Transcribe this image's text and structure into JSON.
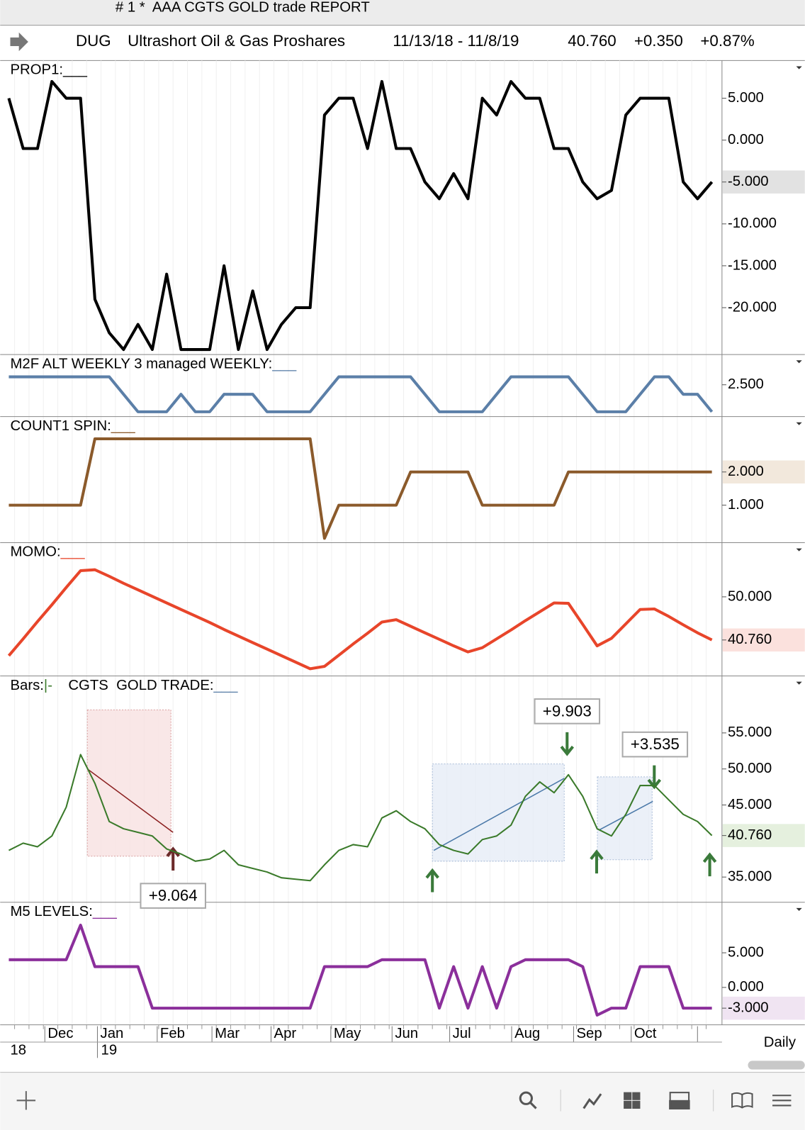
{
  "header": {
    "title": "# 1 *  AAA CGTS GOLD trade REPORT",
    "symbol": "DUG",
    "name": "Ultrashort Oil & Gas Proshares",
    "range": "11/13/18 - 11/8/19",
    "last": "40.760",
    "change": "+0.350",
    "change_pct": "+0.87%"
  },
  "chart_data": [
    {
      "type": "line",
      "title": "PROP1:",
      "marker": "___",
      "marker_color": "#000000",
      "ylim": [
        -25.6,
        9.5
      ],
      "yticks": [
        {
          "value": 5,
          "label": "5.000"
        },
        {
          "value": 0,
          "label": "0.000"
        },
        {
          "value": -10,
          "label": "-10.000"
        },
        {
          "value": -15,
          "label": "-15.000"
        },
        {
          "value": -20,
          "label": "-20.000"
        }
      ],
      "last_value": {
        "value": -5,
        "label": "-5.000",
        "color": "#e2e2e2"
      },
      "series": [
        {
          "color": "#000000",
          "values": [
            5,
            -1,
            -1,
            7,
            5,
            5,
            -19,
            -23,
            -25,
            -22,
            -25,
            -16,
            -25,
            -25,
            -25,
            -15,
            -25,
            -18,
            -25,
            -22,
            -20,
            -20,
            3,
            5,
            5,
            -1,
            7,
            -1,
            -1,
            -5,
            -7,
            -4,
            -7,
            5,
            3,
            7,
            5,
            5,
            -1,
            -1,
            -5,
            -7,
            -6,
            3,
            5,
            5,
            5,
            -5,
            -7,
            -5
          ]
        }
      ]
    },
    {
      "type": "line",
      "title": "M2F ALT WEEKLY 3 managed WEEKLY:",
      "marker": "___",
      "marker_color": "#5b7fa8",
      "ylim": [
        0.5,
        4.4
      ],
      "yticks": [
        {
          "value": 2.5,
          "label": "2.500"
        }
      ],
      "series": [
        {
          "color": "#5b7fa8",
          "values": [
            3,
            3,
            3,
            3,
            3,
            3,
            3,
            3,
            1.9,
            0.8,
            0.8,
            0.8,
            1.9,
            0.8,
            0.8,
            1.9,
            1.9,
            1.9,
            0.8,
            0.8,
            0.8,
            0.8,
            1.9,
            3,
            3,
            3,
            3,
            3,
            3,
            1.9,
            0.8,
            0.8,
            0.8,
            0.8,
            1.9,
            3,
            3,
            3,
            3,
            3,
            1.9,
            0.8,
            0.8,
            0.8,
            1.9,
            3,
            3,
            1.9,
            1.9,
            0.8
          ]
        }
      ]
    },
    {
      "type": "line",
      "title": "COUNT1 SPIN:",
      "marker": "___",
      "marker_color": "#8b5a2b",
      "ylim": [
        -0.13,
        3.67
      ],
      "yticks": [
        {
          "value": 1,
          "label": "1.000"
        }
      ],
      "last_value": {
        "value": 2,
        "label": "2.000",
        "color": "#f2e8dc"
      },
      "series": [
        {
          "color": "#8b5a2b",
          "values": [
            1,
            1,
            1,
            1,
            1,
            1,
            3,
            3,
            3,
            3,
            3,
            3,
            3,
            3,
            3,
            3,
            3,
            3,
            3,
            3,
            3,
            3,
            0,
            1,
            1,
            1,
            1,
            1,
            2,
            2,
            2,
            2,
            2,
            1,
            1,
            1,
            1,
            1,
            1,
            2,
            2,
            2,
            2,
            2,
            2,
            2,
            2,
            2,
            2,
            2
          ]
        }
      ]
    },
    {
      "type": "line",
      "title": "MOMO:",
      "marker": "___",
      "marker_color": "#e8452a",
      "ylim": [
        33.05,
        61.6
      ],
      "yticks": [
        {
          "value": 50,
          "label": "50.000"
        }
      ],
      "last_value": {
        "value": 40.76,
        "label": "40.760",
        "color": "#fbe1dd"
      },
      "series": [
        {
          "color": "#e8452a",
          "values": [
            37.4,
            41.0,
            44.7,
            48.3,
            52.0,
            55.6,
            55.8,
            54.4,
            52.9,
            51.5,
            50.1,
            48.7,
            47.3,
            45.9,
            44.5,
            43.0,
            41.6,
            40.2,
            38.8,
            37.4,
            36.0,
            34.6,
            35.1,
            37.5,
            39.9,
            42.2,
            44.6,
            45.1,
            43.7,
            42.3,
            40.9,
            39.5,
            38.2,
            39.1,
            41.0,
            42.9,
            44.9,
            46.8,
            48.7,
            48.6,
            44.1,
            39.5,
            41.1,
            44.2,
            47.3,
            47.4,
            45.8,
            44.0,
            42.3,
            40.76
          ]
        }
      ]
    },
    {
      "type": "price",
      "title": "Bars:",
      "bar_icon": "|-",
      "subtitle": "CGTS  GOLD TRADE:",
      "marker": "___",
      "marker_color": "#5b7fa8",
      "ylim": [
        31.5,
        62.9
      ],
      "yticks": [
        {
          "value": 55,
          "label": "55.000"
        },
        {
          "value": 50,
          "label": "50.000"
        },
        {
          "value": 45,
          "label": "45.000"
        },
        {
          "value": 35,
          "label": "35.000"
        }
      ],
      "last_value": {
        "value": 40.76,
        "label": "40.760",
        "color": "#e5f0de"
      },
      "annotations": [
        {
          "text": "+9.064",
          "color": "#8b2020"
        },
        {
          "text": "+9.903",
          "color": "#3a7a3a"
        },
        {
          "text": "+3.535",
          "color": "#3a7a3a"
        }
      ],
      "series": [
        {
          "color": "#3a7a2a",
          "values": [
            38.7,
            39.7,
            39.2,
            40.7,
            44.7,
            52.0,
            48.0,
            42.7,
            41.7,
            41.2,
            40.7,
            38.9,
            38.2,
            37.2,
            37.5,
            38.7,
            36.7,
            36.2,
            35.7,
            34.9,
            34.7,
            34.5,
            36.7,
            38.7,
            39.5,
            39.2,
            43.2,
            44.2,
            42.7,
            41.7,
            39.5,
            38.7,
            38.2,
            40.2,
            40.7,
            42.2,
            46.2,
            48.2,
            46.7,
            49.2,
            46.2,
            41.7,
            40.7,
            43.7,
            47.7,
            47.7,
            45.7,
            43.7,
            42.7,
            40.76
          ]
        }
      ]
    },
    {
      "type": "line",
      "title": "M5 LEVELS:",
      "marker": "___",
      "marker_color": "#8b2f9b",
      "ylim": [
        -5.4,
        12.3
      ],
      "yticks": [
        {
          "value": 5,
          "label": "5.000"
        },
        {
          "value": 0,
          "label": "0.000"
        }
      ],
      "last_value": {
        "value": -3,
        "label": "-3.000",
        "color": "#f0e4f2"
      },
      "series": [
        {
          "color": "#8b2f9b",
          "values": [
            4,
            4,
            4,
            4,
            4,
            9,
            3,
            3,
            3,
            3,
            -3,
            -3,
            -3,
            -3,
            -3,
            -3,
            -3,
            -3,
            -3,
            -3,
            -3,
            -3,
            3,
            3,
            3,
            3,
            4,
            4,
            4,
            4,
            -3,
            3,
            -3,
            3,
            -3,
            3,
            4,
            4,
            4,
            4,
            3,
            -4,
            -3,
            -3,
            3,
            3,
            3,
            -3,
            -3,
            -3
          ]
        }
      ]
    }
  ],
  "x_axis": {
    "months": [
      "Dec",
      "Jan",
      "Feb",
      "Mar",
      "Apr",
      "May",
      "Jun",
      "Jul",
      "Aug",
      "Sep",
      "Oct"
    ],
    "years": [
      "18",
      "19"
    ]
  },
  "footer": {
    "timeframe": "Daily"
  }
}
